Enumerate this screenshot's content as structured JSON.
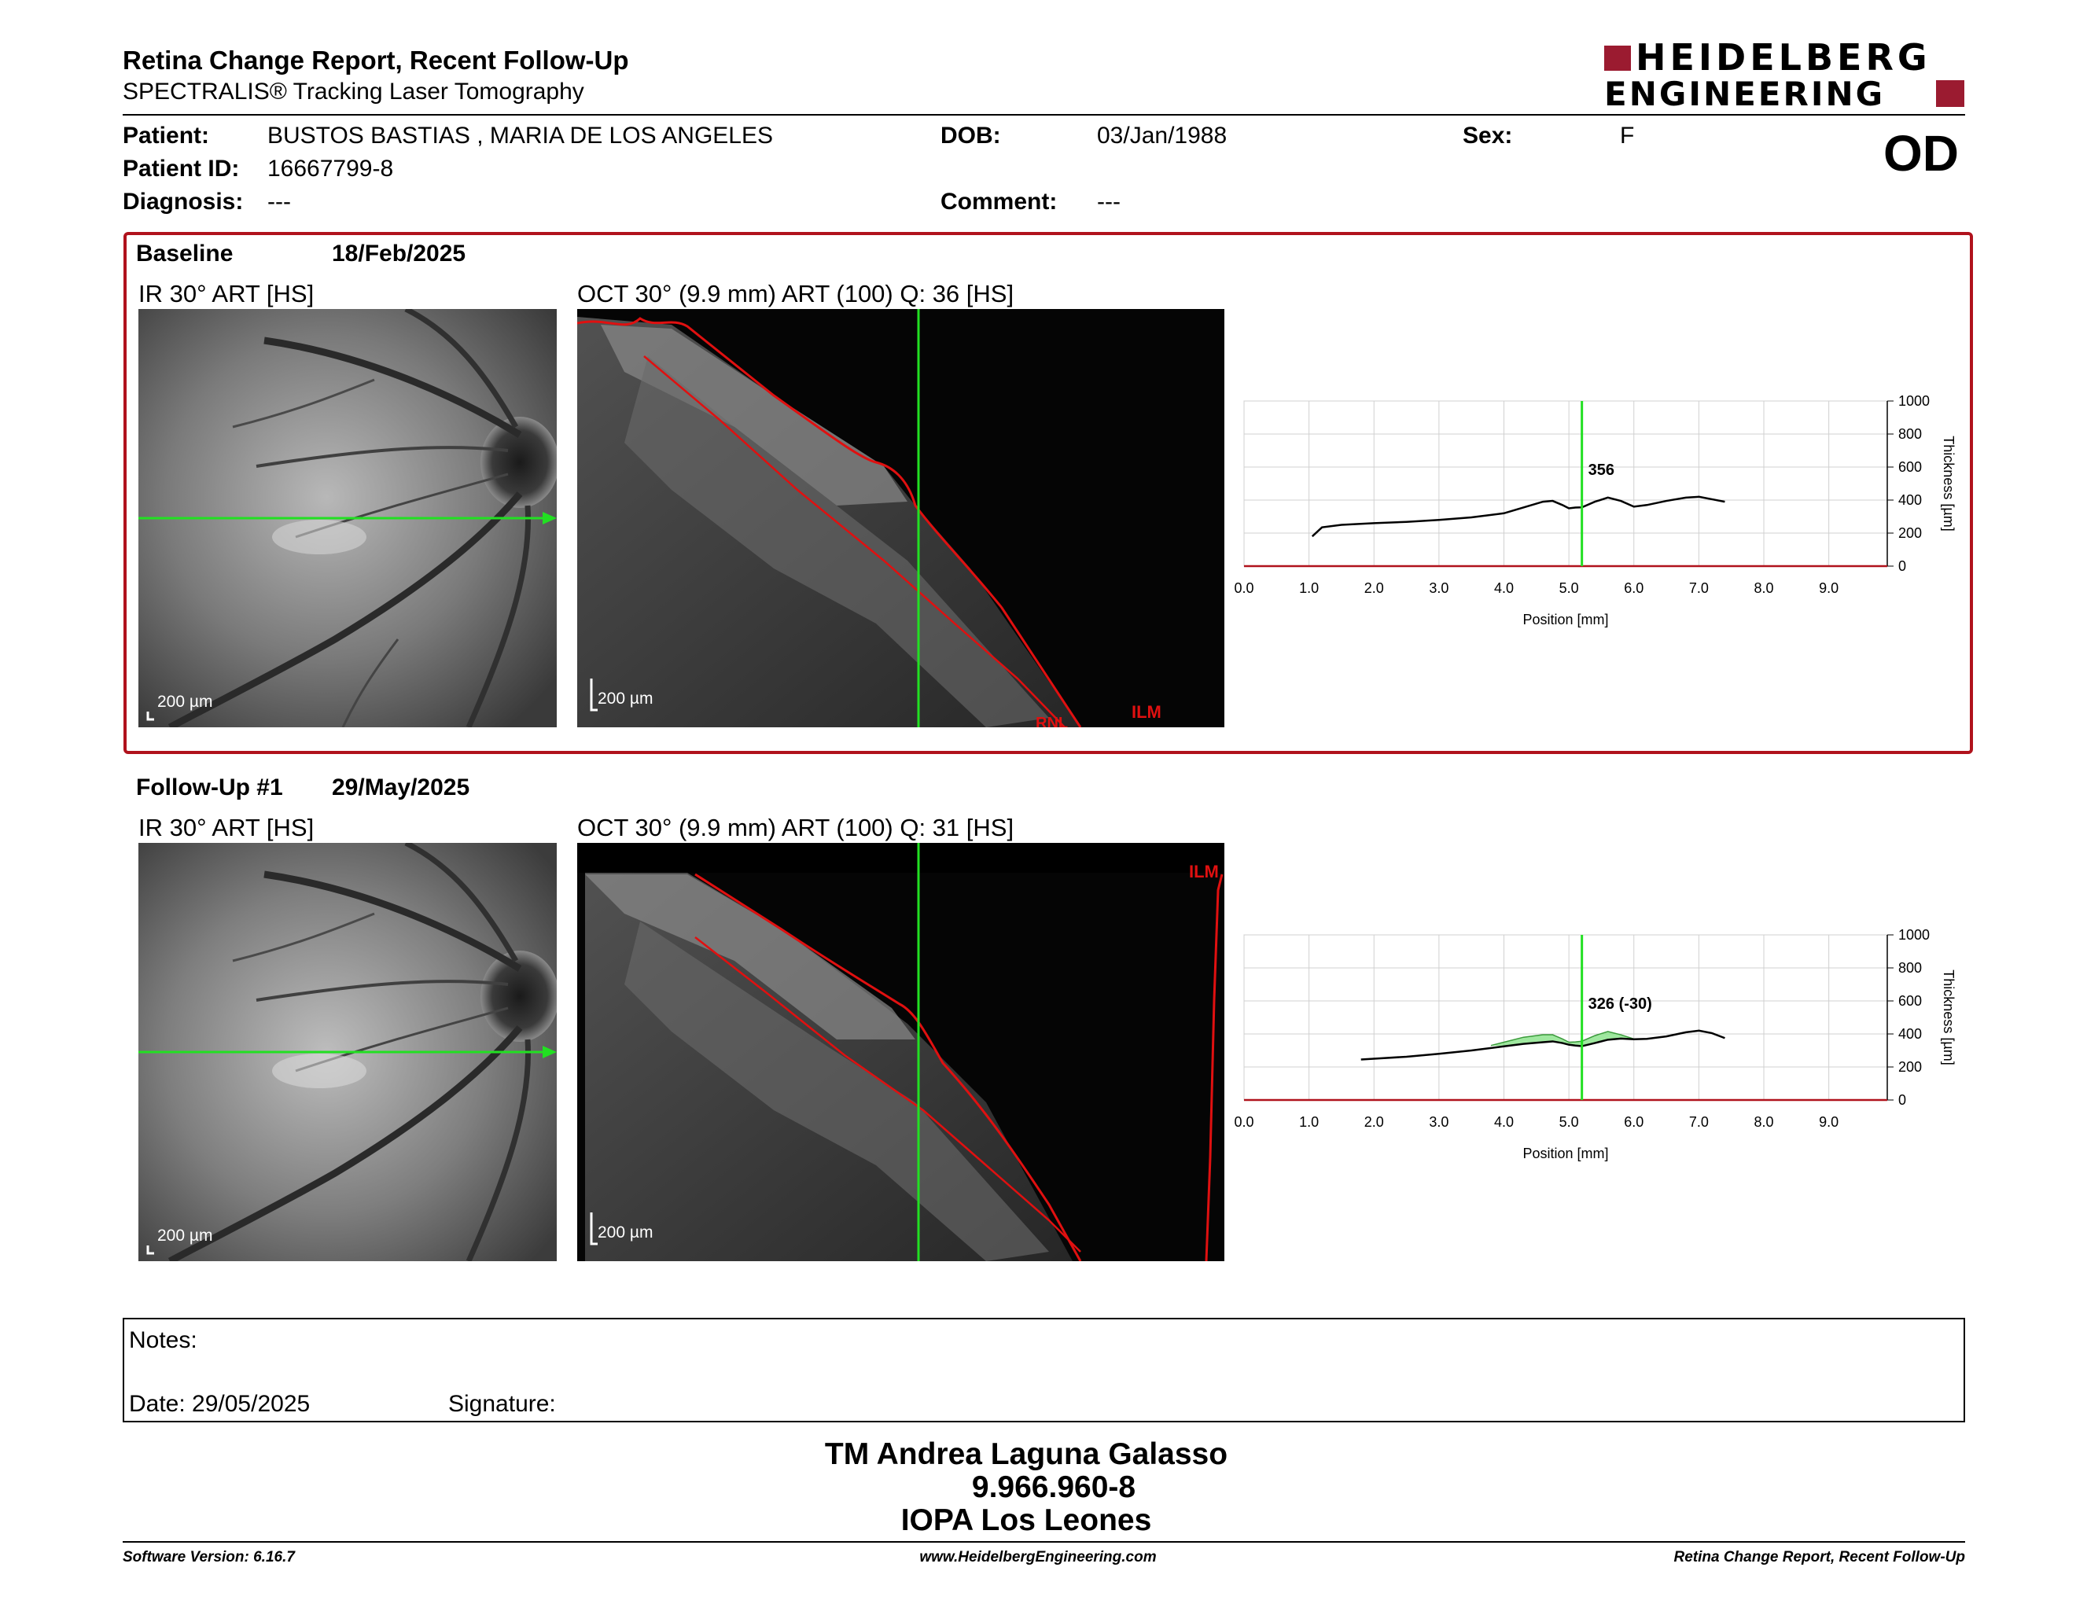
{
  "header": {
    "title": "Retina Change Report, Recent Follow-Up",
    "subtitle": "SPECTRALIS® Tracking Laser Tomography",
    "logo_line1": "HEIDELBERG",
    "logo_line2": "ENGINEERING",
    "eye": "OD"
  },
  "patient": {
    "patient_label": "Patient:",
    "patient_value": "BUSTOS BASTIAS , MARIA DE LOS ANGELES",
    "dob_label": "DOB:",
    "dob_value": "03/Jan/1988",
    "sex_label": "Sex:",
    "sex_value": "F",
    "id_label": "Patient ID:",
    "id_value": "16667799-8",
    "diagnosis_label": "Diagnosis:",
    "diagnosis_value": "---",
    "comment_label": "Comment:",
    "comment_value": "---"
  },
  "baseline": {
    "label": "Baseline",
    "date": "18/Feb/2025",
    "ir_title": "IR 30° ART [HS]",
    "oct_title": "OCT 30° (9.9 mm) ART (100) Q: 36 [HS]",
    "scale_ir": "200 µm",
    "scale_oct": "200 µm",
    "ilm_label": "ILM",
    "rnl_label": "RNL"
  },
  "followup": {
    "label": "Follow-Up #1",
    "date": "29/May/2025",
    "ir_title": "IR 30° ART [HS]",
    "oct_title": "OCT 30° (9.9 mm) ART (100) Q: 31 [HS]",
    "scale_ir": "200 µm",
    "scale_oct": "200 µm",
    "ilm_label": "ILM"
  },
  "colors": {
    "frame_red": "#b0121c",
    "logo_red": "#9b1b30",
    "scan_green": "#22e022",
    "seg_red": "#e01010"
  },
  "chart_data": [
    {
      "type": "line",
      "name": "baseline-thickness",
      "xlabel": "Position [mm]",
      "ylabel": "Thickness [µm]",
      "xlim": [
        0,
        9.9
      ],
      "ylim": [
        0,
        1000
      ],
      "xticks": [
        "0.0",
        "1.0",
        "2.0",
        "3.0",
        "4.0",
        "5.0",
        "6.0",
        "7.0",
        "8.0",
        "9.0"
      ],
      "yticks": [
        "0",
        "200",
        "400",
        "600",
        "800",
        "1000"
      ],
      "grid": true,
      "marker_x": 5.2,
      "marker_label": "356",
      "series": [
        {
          "x": [
            1.05,
            1.2,
            1.5,
            2.0,
            2.5,
            3.0,
            3.5,
            4.0,
            4.3,
            4.6,
            4.75,
            4.9,
            5.0,
            5.1,
            5.2,
            5.4,
            5.6,
            5.8,
            6.0,
            6.2,
            6.5,
            6.8,
            7.0,
            7.2,
            7.4
          ],
          "values": [
            180,
            235,
            250,
            260,
            268,
            280,
            295,
            320,
            355,
            390,
            395,
            370,
            350,
            355,
            356,
            390,
            415,
            395,
            360,
            370,
            395,
            415,
            420,
            405,
            390
          ]
        }
      ]
    },
    {
      "type": "line",
      "name": "followup-thickness",
      "xlabel": "Position [mm]",
      "ylabel": "Thickness [µm]",
      "xlim": [
        0,
        9.9
      ],
      "ylim": [
        0,
        1000
      ],
      "xticks": [
        "0.0",
        "1.0",
        "2.0",
        "3.0",
        "4.0",
        "5.0",
        "6.0",
        "7.0",
        "8.0",
        "9.0"
      ],
      "yticks": [
        "0",
        "200",
        "400",
        "600",
        "800",
        "1000"
      ],
      "grid": true,
      "marker_x": 5.2,
      "marker_label": "326 (-30)",
      "series": [
        {
          "x": [
            1.8,
            2.0,
            2.5,
            3.0,
            3.5,
            4.0,
            4.3,
            4.6,
            4.75,
            4.9,
            5.0,
            5.1,
            5.2,
            5.4,
            5.6,
            5.8,
            6.0,
            6.2,
            6.5,
            6.8,
            7.0,
            7.2,
            7.4
          ],
          "values": [
            245,
            250,
            262,
            280,
            300,
            325,
            340,
            350,
            355,
            345,
            335,
            330,
            326,
            345,
            365,
            372,
            368,
            370,
            385,
            410,
            420,
            405,
            375
          ]
        },
        {
          "x": [
            3.8,
            4.0,
            4.3,
            4.6,
            4.75,
            4.9,
            5.0,
            5.1,
            5.2,
            5.4,
            5.6,
            5.8,
            6.0,
            6.2
          ],
          "values": [
            330,
            350,
            380,
            395,
            395,
            370,
            350,
            352,
            356,
            390,
            415,
            395,
            370,
            370
          ]
        }
      ]
    }
  ],
  "notes": {
    "notes_label": "Notes:",
    "date_label": "Date: 29/05/2025",
    "signature_label": "Signature:"
  },
  "signature": {
    "name": "TM Andrea Laguna Galasso",
    "rut": "9.966.960-8",
    "clinic": "IOPA Los Leones"
  },
  "footer": {
    "software": "Software Version: 6.16.7",
    "website": "www.HeidelbergEngineering.com",
    "report": "Retina Change Report, Recent Follow-Up"
  }
}
